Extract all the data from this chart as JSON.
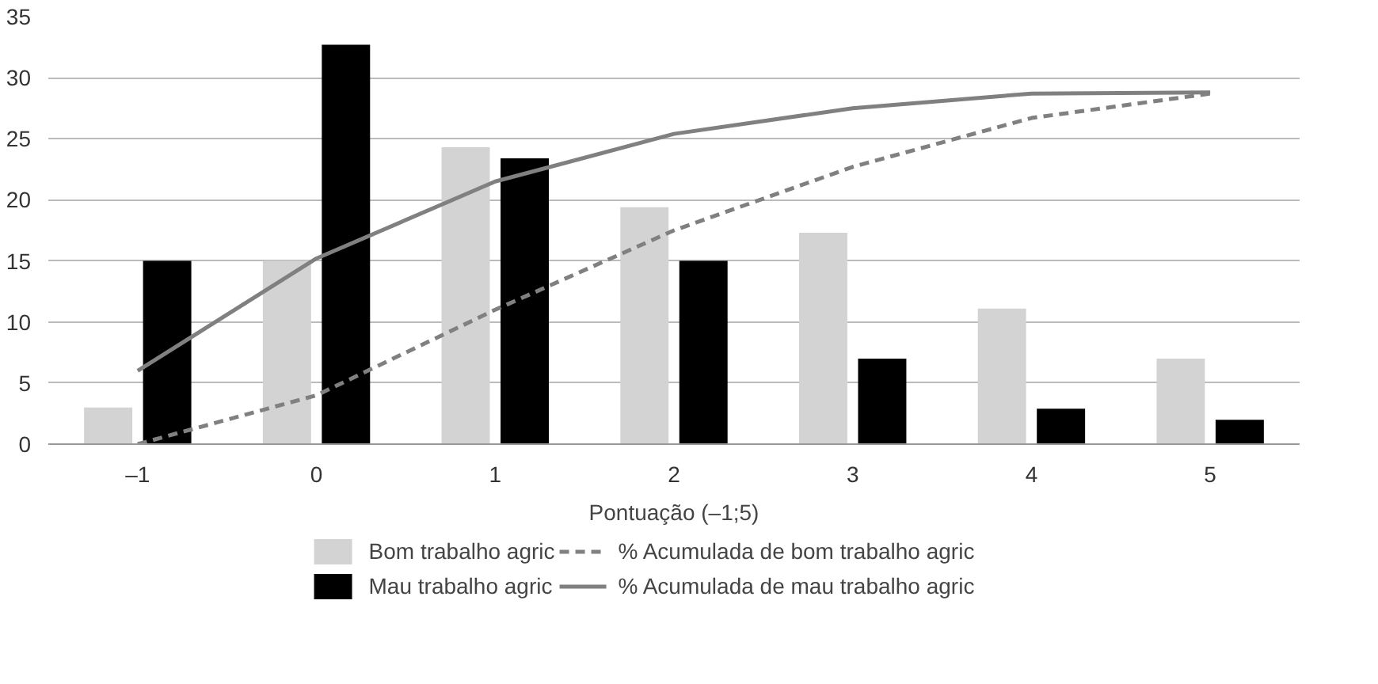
{
  "chart_data": {
    "type": "bar",
    "xlabel": "Pontuação (–1;5)",
    "categories": [
      "–1",
      "0",
      "1",
      "2",
      "3",
      "4",
      "5"
    ],
    "series": [
      {
        "name": "Bom trabalho agric",
        "color": "#d3d3d3",
        "values": [
          3,
          15,
          24.3,
          19.4,
          17.3,
          11.1,
          7
        ]
      },
      {
        "name": "Mau trabalho agric",
        "color": "#000000",
        "values": [
          15,
          32.7,
          23.4,
          15,
          7,
          2.9,
          2
        ]
      },
      {
        "name": "% Acumulada de bom trabalho agric",
        "type": "line",
        "color": "#808080",
        "line_style": "dashed",
        "values": [
          0,
          4,
          11,
          17.5,
          22.7,
          26.7,
          28.7
        ]
      },
      {
        "name": "% Acumulada de mau trabalho agric",
        "type": "line",
        "color": "#808080",
        "line_style": "solid",
        "values": [
          6,
          15.2,
          21.5,
          25.4,
          27.5,
          28.7,
          28.8
        ]
      }
    ],
    "ylim": [
      0,
      35
    ],
    "yticks": [
      0,
      5,
      10,
      15,
      20,
      25,
      30,
      35
    ],
    "grid": "y",
    "legend": "bottom"
  }
}
